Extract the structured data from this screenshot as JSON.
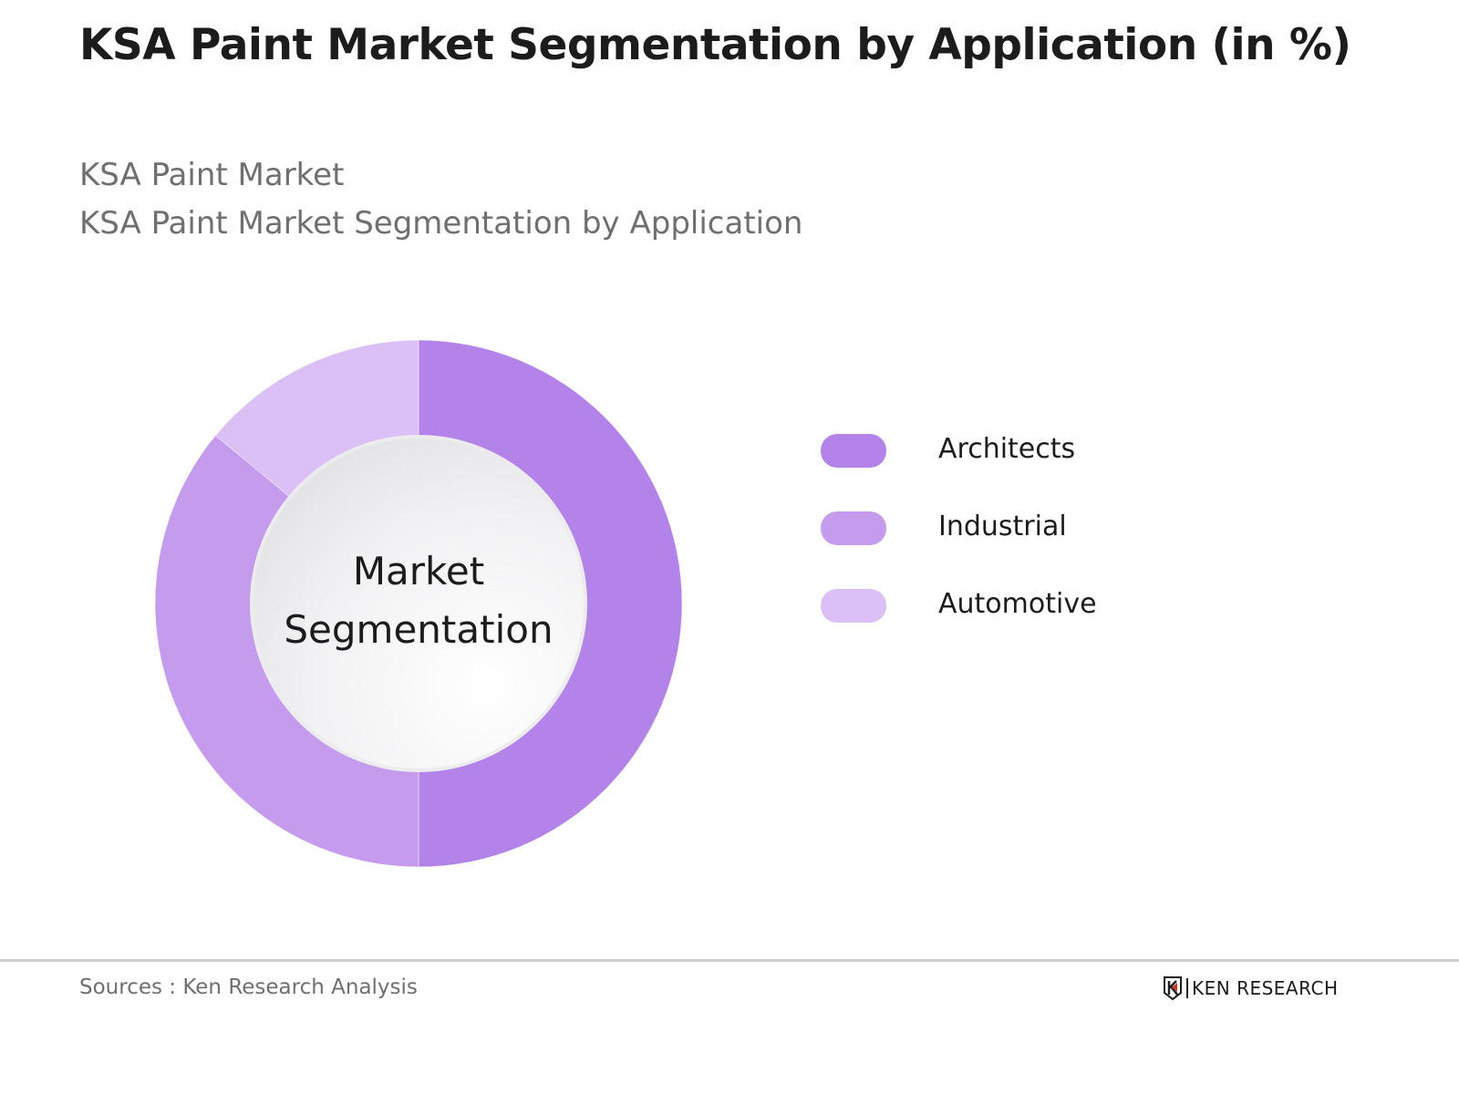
{
  "header": {
    "title": "KSA Paint Market Segmentation by Application (in %)",
    "subtitle_1": "KSA Paint Market",
    "subtitle_2": "KSA Paint Market Segmentation by Application"
  },
  "chart": {
    "center_label_line1": "Market",
    "center_label_line2": "Segmentation"
  },
  "legend": {
    "items": [
      {
        "label": "Architects",
        "color": "#b383e9"
      },
      {
        "label": "Industrial",
        "color": "#c59bed"
      },
      {
        "label": "Automotive",
        "color": "#dbc0f6"
      }
    ]
  },
  "footer": {
    "source": "Sources : Ken Research Analysis",
    "logo_text": "KEN RESEARCH"
  },
  "chart_data": {
    "type": "pie",
    "subtype": "donut",
    "title": "KSA Paint Market Segmentation by Application (in %)",
    "subtitle": "KSA Paint Market Segmentation by Application",
    "categories": [
      "Architects",
      "Industrial",
      "Automotive"
    ],
    "values": [
      50,
      36,
      14
    ],
    "colors": [
      "#b383e9",
      "#c59bed",
      "#dbc0f6"
    ],
    "center_text": "Market Segmentation",
    "legend_position": "right",
    "data_labels": false,
    "source": "Sources : Ken Research Analysis"
  }
}
